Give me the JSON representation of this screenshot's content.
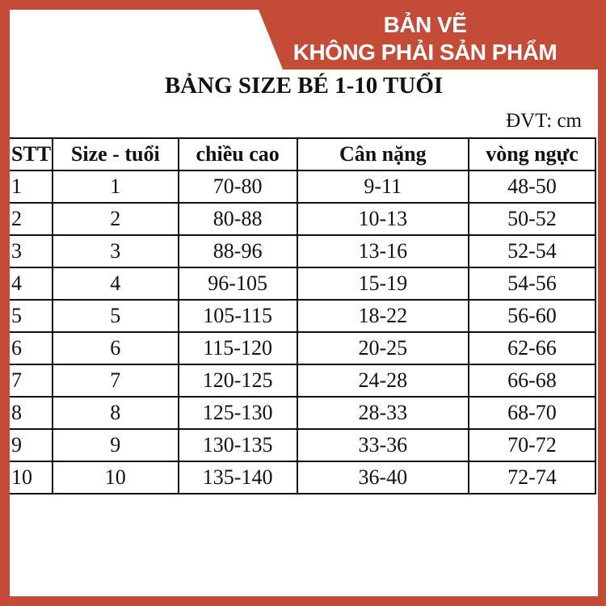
{
  "banner": {
    "line1": "BẢN VẼ",
    "line2": "KHÔNG PHẢI SẢN PHẨM"
  },
  "title": "BẢNG SIZE BÉ 1-10 TUỔI",
  "unit": "ĐVT: cm",
  "colors": {
    "border": "#c44c37",
    "banner_text": "#ffffff"
  },
  "table": {
    "headers": [
      "STT",
      "Size - tuổi",
      "chiều cao",
      "Cân nặng",
      "vòng ngực"
    ],
    "rows": [
      [
        "1",
        "1",
        "70-80",
        "9-11",
        "48-50"
      ],
      [
        "2",
        "2",
        "80-88",
        "10-13",
        "50-52"
      ],
      [
        "3",
        "3",
        "88-96",
        "13-16",
        "52-54"
      ],
      [
        "4",
        "4",
        "96-105",
        "15-19",
        "54-56"
      ],
      [
        "5",
        "5",
        "105-115",
        "18-22",
        "56-60"
      ],
      [
        "6",
        "6",
        "115-120",
        "20-25",
        "62-66"
      ],
      [
        "7",
        "7",
        "120-125",
        "24-28",
        "66-68"
      ],
      [
        "8",
        "8",
        "125-130",
        "28-33",
        "68-70"
      ],
      [
        "9",
        "9",
        "130-135",
        "33-36",
        "70-72"
      ],
      [
        "10",
        "10",
        "135-140",
        "36-40",
        "72-74"
      ]
    ]
  }
}
